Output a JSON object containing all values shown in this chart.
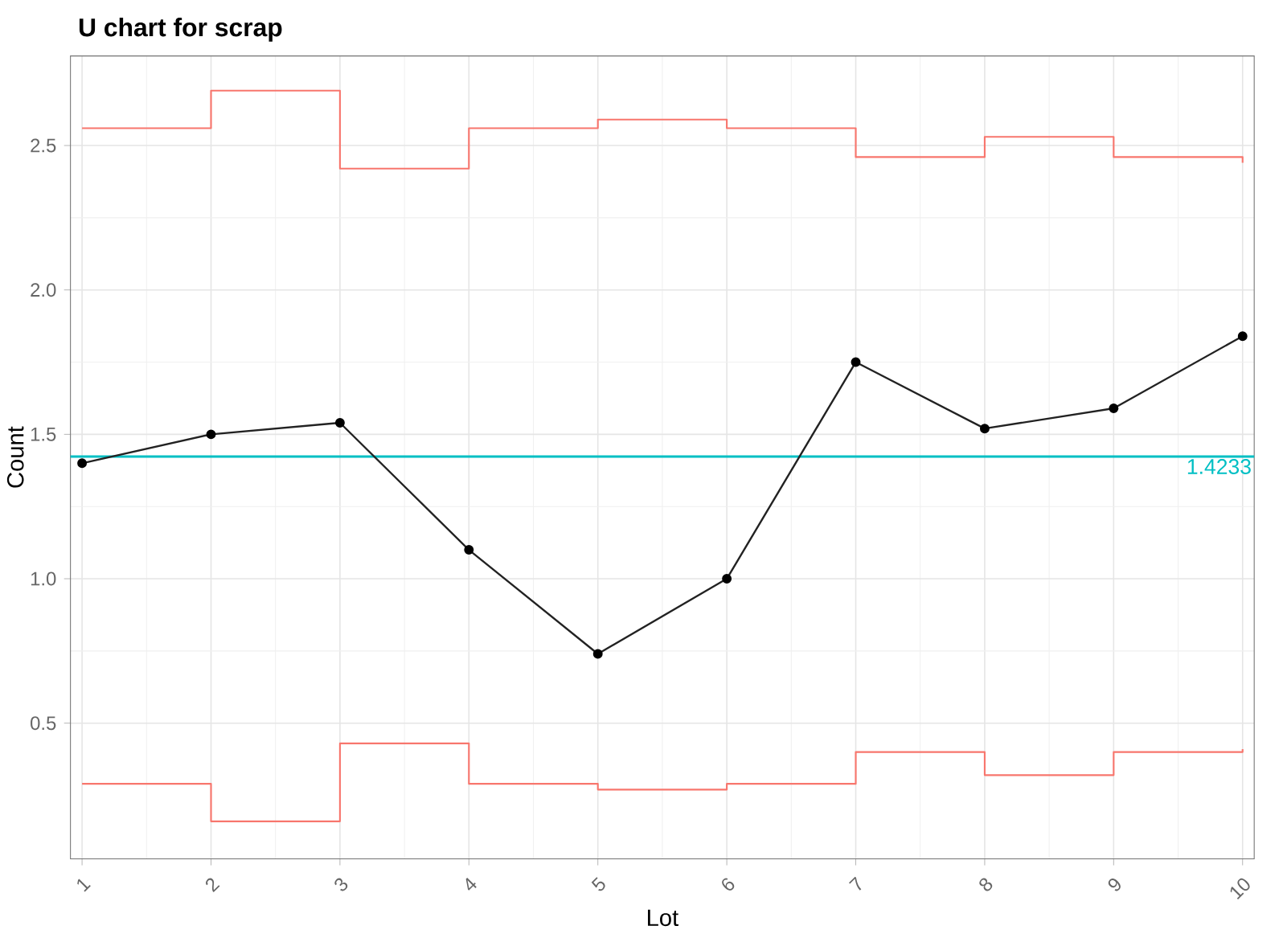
{
  "chart_data": {
    "type": "line",
    "title": "U chart for scrap",
    "xlabel": "Lot",
    "ylabel": "Count",
    "x": [
      1,
      2,
      3,
      4,
      5,
      6,
      7,
      8,
      9,
      10
    ],
    "series": [
      {
        "color": "#f8766d",
        "type": "step",
        "marker": "none",
        "values": [
          2.56,
          2.69,
          2.42,
          2.56,
          2.59,
          2.56,
          2.46,
          2.53,
          2.46,
          2.44
        ]
      },
      {
        "color": "#f8766d",
        "type": "step",
        "marker": "none",
        "values": [
          0.29,
          0.16,
          0.43,
          0.29,
          0.27,
          0.29,
          0.4,
          0.32,
          0.4,
          0.41
        ]
      },
      {
        "color": "#222222",
        "values": [
          1.4,
          1.5,
          1.54,
          1.1,
          0.74,
          1.0,
          1.75,
          1.52,
          1.59,
          1.84
        ]
      }
    ],
    "ref_lines": [
      {
        "axis": "y",
        "value": 1.4233,
        "label": "1.4233",
        "color": "#00bfc4"
      }
    ],
    "xlim": [
      0.91,
      10.09
    ],
    "ylim": [
      0.03,
      2.81
    ],
    "xticks": [
      1,
      2,
      3,
      4,
      5,
      6,
      7,
      8,
      9,
      10
    ],
    "yticks": [
      0.5,
      {
        "value": 1.0,
        "label": "1.0"
      },
      1.5,
      {
        "value": 2.0,
        "label": "2.0"
      },
      2.5
    ],
    "grid": true,
    "marker": "circle"
  }
}
